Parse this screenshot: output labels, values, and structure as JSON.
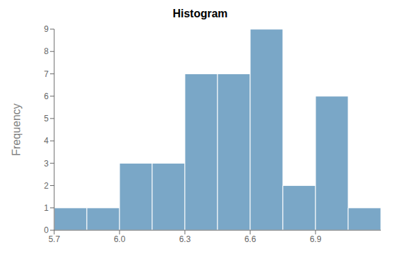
{
  "chart_data": {
    "type": "histogram",
    "title": "Histogram",
    "ylabel": "Frequency",
    "bins": [
      5.7,
      5.85,
      6.0,
      6.15,
      6.3,
      6.45,
      6.6,
      6.75,
      6.9,
      7.05,
      7.2
    ],
    "values": [
      1,
      1,
      3,
      3,
      7,
      7,
      9,
      2,
      6,
      1
    ],
    "color": "#7aa7c7",
    "xlim": [
      5.7,
      7.2
    ],
    "xticks": [
      5.7,
      {
        "value": 6.0,
        "label": "6.0"
      },
      6.3,
      6.6,
      6.9
    ],
    "ylim": [
      0,
      9
    ],
    "yticks": [
      0,
      1,
      2,
      3,
      4,
      5,
      6,
      7,
      8,
      9
    ],
    "grid": false
  }
}
